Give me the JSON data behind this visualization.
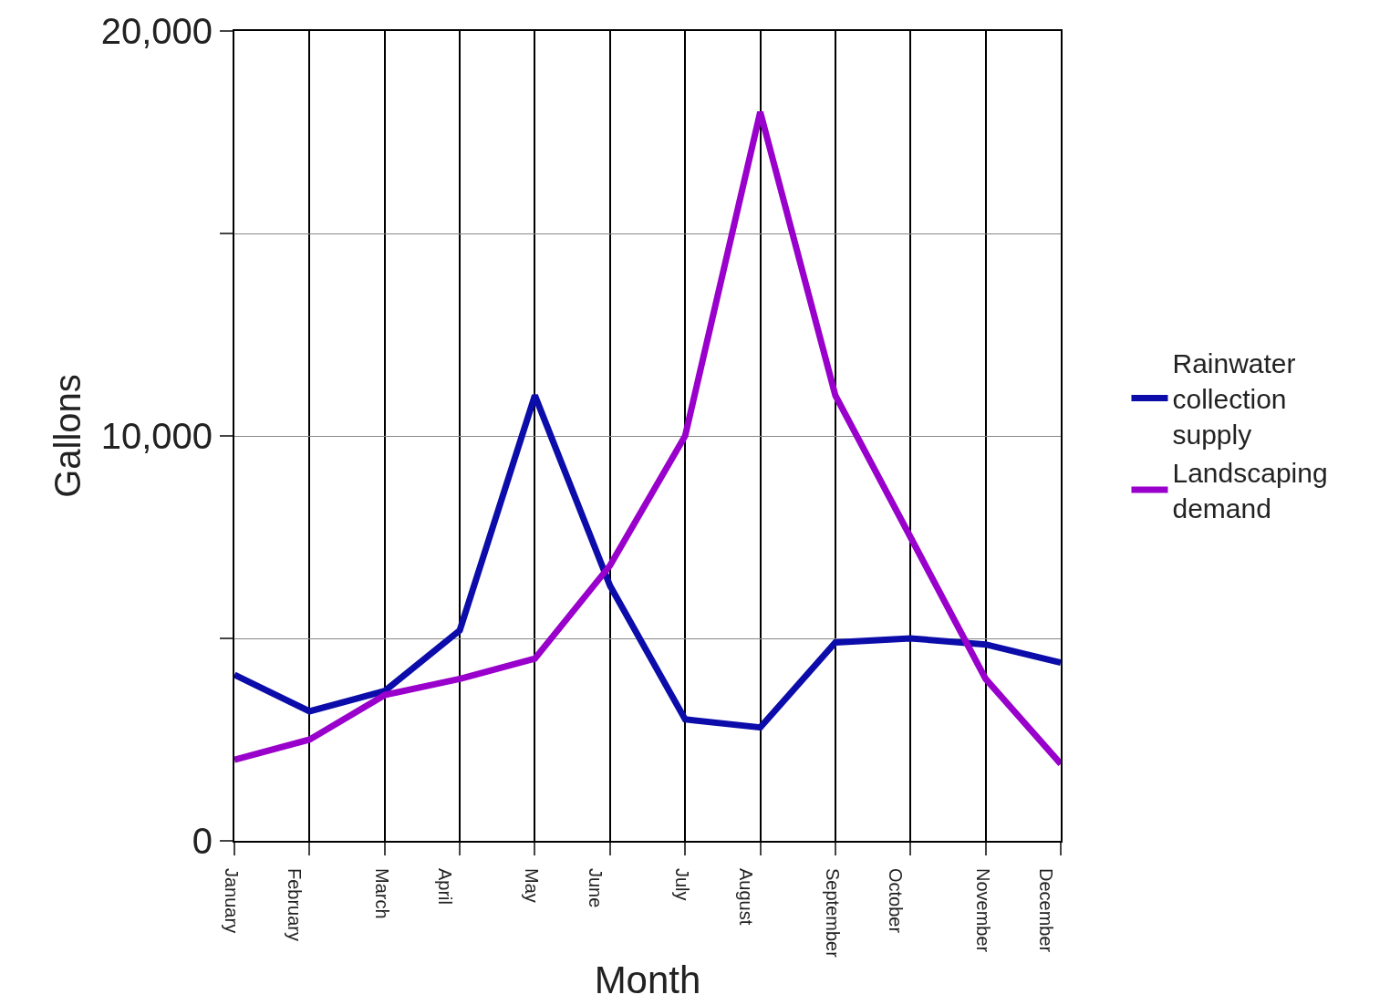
{
  "chart_data": {
    "type": "line",
    "xlabel": "Month",
    "ylabel": "Gallons",
    "categories": [
      "January",
      "February",
      "March",
      "April",
      "May",
      "June",
      "July",
      "August",
      "September",
      "October",
      "November",
      "December"
    ],
    "series": [
      {
        "name": "Rainwater collection supply",
        "color": "#0c0caa",
        "values": [
          4100,
          3200,
          3700,
          5200,
          11000,
          6300,
          3000,
          2800,
          4900,
          5000,
          4850,
          4400
        ]
      },
      {
        "name": "Landscaping demand",
        "color": "#9900cc",
        "values": [
          2000,
          2500,
          3600,
          4000,
          4500,
          6800,
          10000,
          18000,
          11000,
          7500,
          4000,
          1900
        ]
      }
    ],
    "ylim": [
      0,
      20000
    ],
    "yticks": [
      0,
      {
        "value": 5000,
        "label": null
      },
      {
        "value": 10000,
        "label": "10,000"
      },
      {
        "value": 15000,
        "label": null
      },
      {
        "value": 20000,
        "label": "20,000"
      }
    ],
    "grid": true,
    "legend": "right",
    "line_style": "solid",
    "marker": "none"
  }
}
